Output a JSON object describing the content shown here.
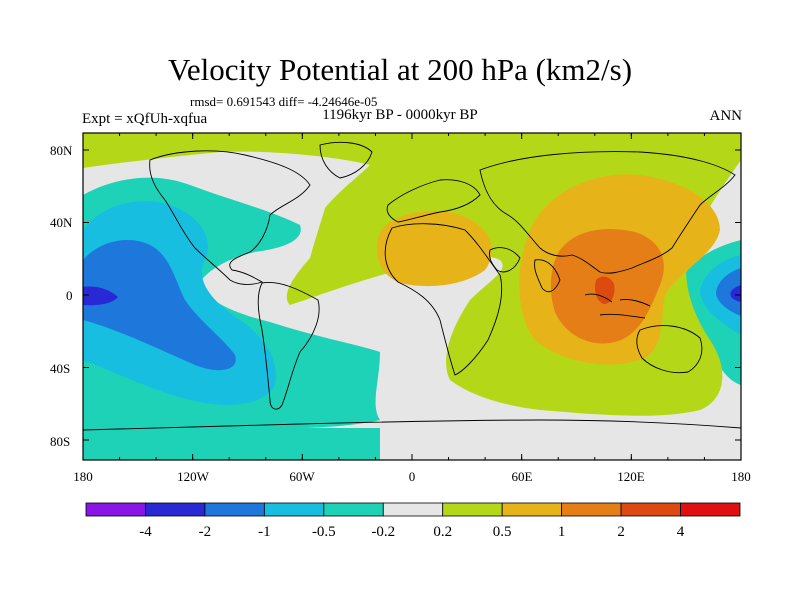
{
  "header": {
    "title": "Velocity Potential at 200 hPa (km2/s)",
    "stats": "rmsd= 0.691543 diff= -4.24646e-05",
    "period": "1196kyr BP - 0000kyr BP",
    "experiment": "Expt = xQfUh-xqfua",
    "season": "ANN"
  },
  "axes": {
    "y_ticks": [
      "80N",
      "40N",
      "0",
      "40S",
      "80S"
    ],
    "x_ticks": [
      "180",
      "120W",
      "60W",
      "0",
      "60E",
      "120E",
      "180"
    ]
  },
  "legend": {
    "labels": [
      "-4",
      "-2",
      "-1",
      "-0.5",
      "-0.2",
      "0.2",
      "0.5",
      "1",
      "2",
      "4"
    ],
    "colors": [
      "#8a16e6",
      "#2828d4",
      "#1e78dc",
      "#18bee0",
      "#1ed2b8",
      "#e6e6e6",
      "#b4d818",
      "#e6b418",
      "#e67e18",
      "#dc4a10",
      "#e01010"
    ]
  },
  "map_colors": {
    "ocean_neutral": "#e6e6e6",
    "pos_small": "#b4d818",
    "pos_mid": "#e6b418",
    "pos_high": "#e67e18",
    "pos_higher": "#dc4a10",
    "neg_small": "#1ed2b8",
    "neg_mid": "#18bee0",
    "neg_high": "#1e78dc",
    "neg_higher": "#2828d4"
  }
}
